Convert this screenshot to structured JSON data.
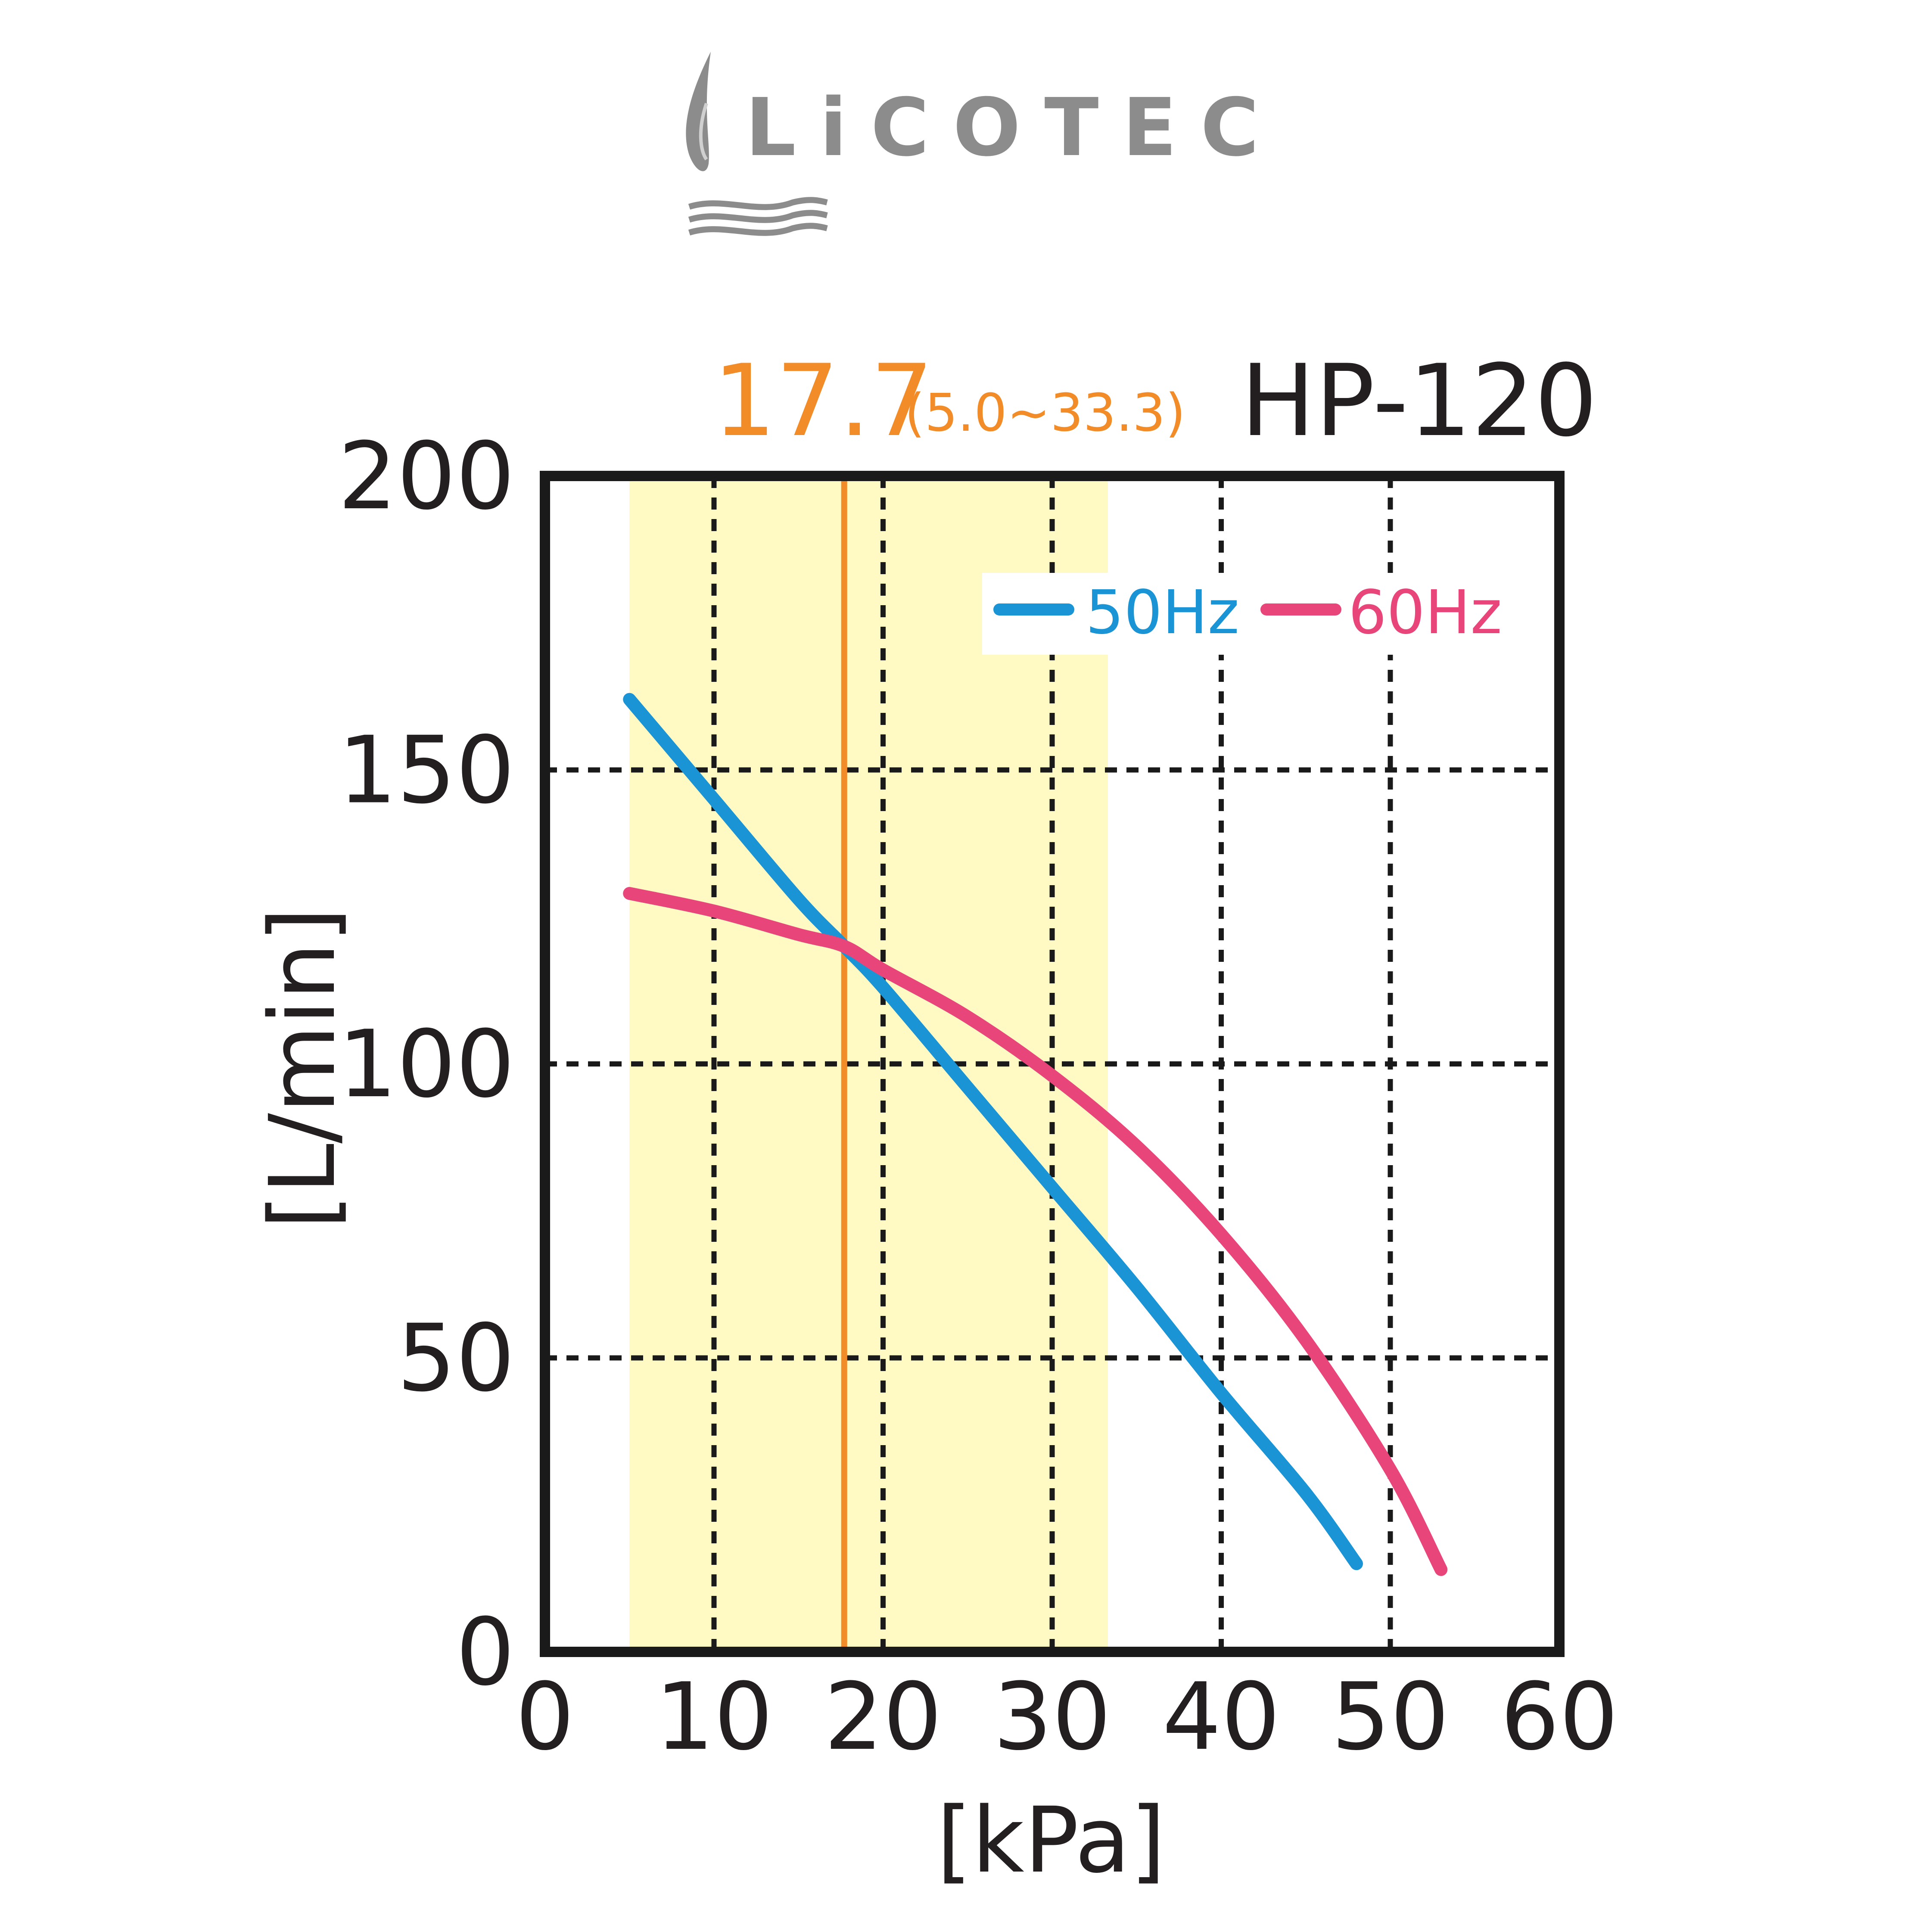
{
  "brand": {
    "name": "LiCOTEC",
    "color": "#8c8c8c"
  },
  "chart_data": {
    "type": "line",
    "model": "HP-120",
    "rated_pressure": "17.7",
    "rated_range": "(5.0~33.3)",
    "rated_value": 17.7,
    "rated_min": 5.0,
    "rated_max": 33.3,
    "xlabel": "[kPa]",
    "ylabel": "[L/min]",
    "xlim": [
      0,
      60
    ],
    "ylim": [
      0,
      200
    ],
    "xticks": [
      0,
      10,
      20,
      30,
      40,
      50,
      60
    ],
    "yticks": [
      0,
      50,
      100,
      150,
      200
    ],
    "xtick_labels": [
      "0",
      "10",
      "20",
      "30",
      "40",
      "50",
      "60"
    ],
    "ytick_labels": [
      "0",
      "50",
      "100",
      "150",
      "200"
    ],
    "grid": true,
    "legend_position": "top-right",
    "colors": {
      "highlight": "#fff9c4",
      "rated_line": "#f28c28",
      "axis": "#1a1a1a",
      "text": "#231f20"
    },
    "series": [
      {
        "name": "50Hz",
        "color": "#1a94d4",
        "x": [
          5,
          10,
          15,
          17.7,
          20,
          25,
          30,
          35,
          40,
          45,
          48
        ],
        "y": [
          162,
          145,
          128,
          120,
          113,
          96,
          79,
          62,
          44,
          27,
          15
        ]
      },
      {
        "name": "60Hz",
        "color": "#e8457a",
        "x": [
          5,
          10,
          15,
          17.7,
          20,
          25,
          30,
          35,
          40,
          45,
          50,
          53
        ],
        "y": [
          129,
          126,
          122,
          120,
          116,
          108,
          98,
          86,
          71,
          53,
          31,
          14
        ]
      }
    ]
  }
}
